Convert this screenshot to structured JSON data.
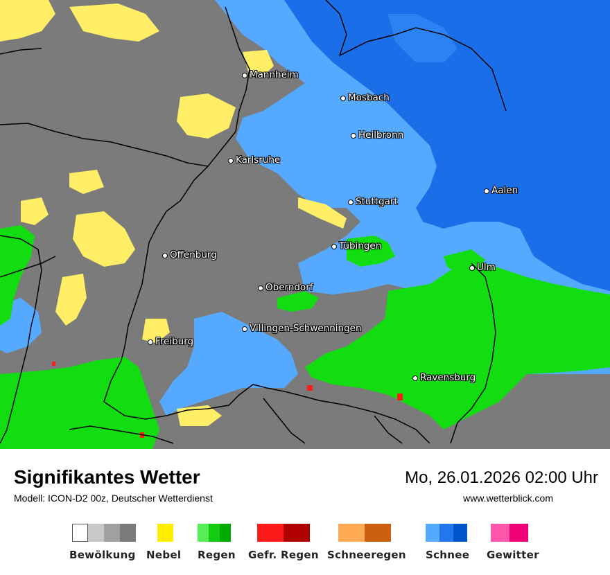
{
  "header": {
    "title": "Signifikantes Wetter",
    "model": "Modell: ICON-D2 00z, Deutscher Wetterdienst",
    "datetime": "Mo, 26.01.2026 02:00 Uhr",
    "website": "www.wetterblick.com"
  },
  "cities": [
    {
      "name": "Mannheim"
    },
    {
      "name": "Mosbach"
    },
    {
      "name": "Heilbronn"
    },
    {
      "name": "Karlsruhe"
    },
    {
      "name": "Aalen"
    },
    {
      "name": "Stuttgart"
    },
    {
      "name": "Tübingen"
    },
    {
      "name": "Offenburg"
    },
    {
      "name": "Ulm"
    },
    {
      "name": "Oberndorf"
    },
    {
      "name": "Villingen-Schwenningen"
    },
    {
      "name": "Freiburg"
    },
    {
      "name": "Ravensburg"
    }
  ],
  "legend": [
    {
      "label": "Bewölkung",
      "colors": [
        "#ffffff",
        "#c8c8c8",
        "#a0a0a0",
        "#7b7b7b"
      ]
    },
    {
      "label": "Nebel",
      "colors": [
        "#ffee00"
      ]
    },
    {
      "label": "Regen",
      "colors": [
        "#55ee55",
        "#11cc11",
        "#00aa00"
      ]
    },
    {
      "label": "Gefr. Regen",
      "colors": [
        "#ff1a1a",
        "#b00000"
      ]
    },
    {
      "label": "Schneeregen",
      "colors": [
        "#ffaa55",
        "#cc6010"
      ]
    },
    {
      "label": "Schnee",
      "colors": [
        "#55aaff",
        "#2277ee",
        "#0055cc"
      ]
    },
    {
      "label": "Gewitter",
      "colors": [
        "#ff55aa",
        "#ee0077"
      ]
    }
  ],
  "colors": {
    "cloud": "#7b7b7b",
    "fog": "#ffee66",
    "rain": "#11dd11",
    "snow_light": "#55aaff",
    "snow_heavy": "#1a6fe8",
    "freezing": "#ff1a1a"
  }
}
